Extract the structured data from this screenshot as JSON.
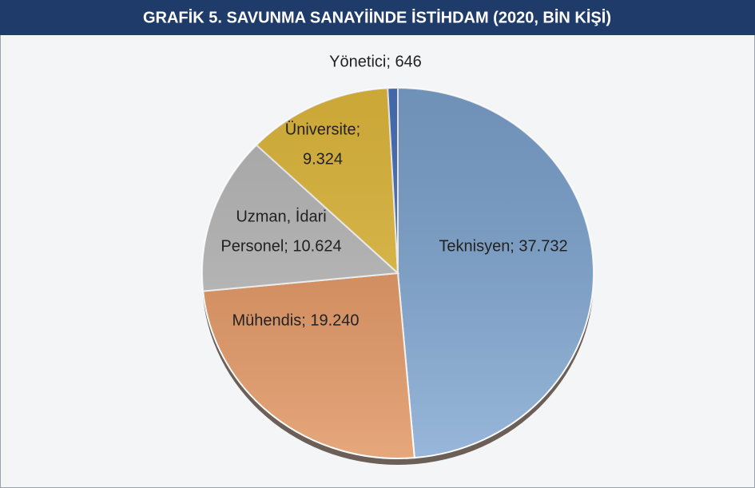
{
  "chart_data": {
    "type": "pie",
    "title": "GRAFİK 5. SAVUNMA SANAYİİNDE İSTİHDAM (2020, BİN KİŞİ)",
    "values": [
      37732,
      19240,
      10624,
      9324,
      646
    ],
    "value_labels": [
      [
        "Teknisyen; 37.732"
      ],
      [
        "Mühendis; 19.240"
      ],
      [
        "Uzman, İdari",
        "Personel; 10.624"
      ],
      [
        "Üniversite;",
        "9.324"
      ],
      [
        "Yönetici; 646"
      ]
    ],
    "colors": [
      "#7ea5d1",
      "#e0915b",
      "#bcbcbc",
      "#e6be3e",
      "#4a74c0"
    ]
  }
}
